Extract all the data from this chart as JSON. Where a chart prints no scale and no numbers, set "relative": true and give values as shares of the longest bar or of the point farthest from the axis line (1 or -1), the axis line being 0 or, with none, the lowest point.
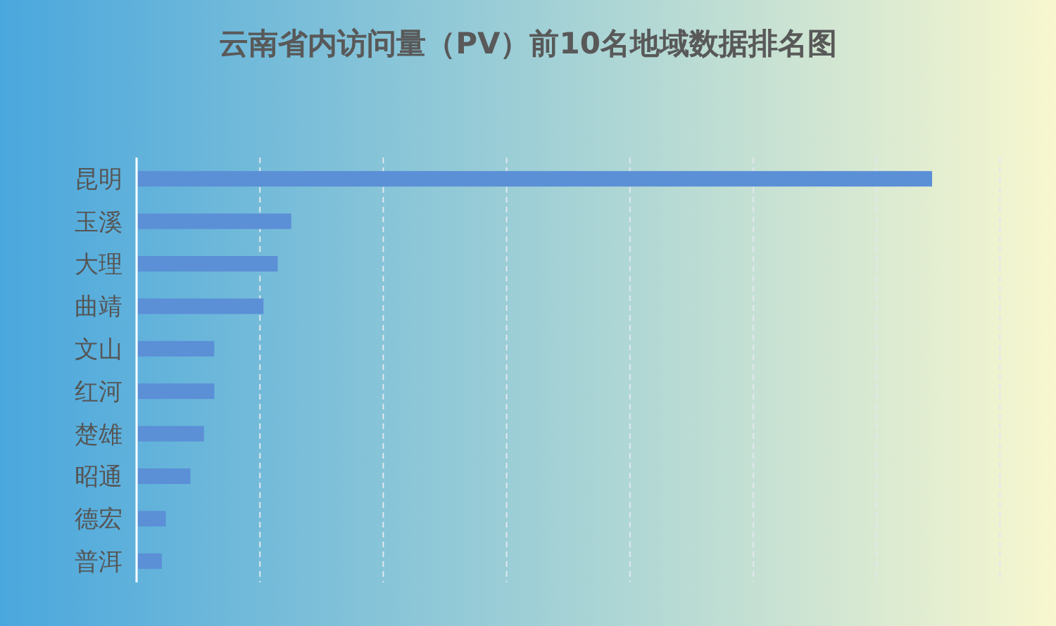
{
  "chart_data": {
    "type": "bar",
    "orientation": "horizontal",
    "relative": true,
    "title": "云南省内访问量（PV）前10名地域数据排名图",
    "categories": [
      "昆明",
      "玉溪",
      "大理",
      "曲靖",
      "文山",
      "红河",
      "楚雄",
      "昭通",
      "德宏",
      "普洱"
    ],
    "values": [
      1,
      0.193,
      0.176,
      0.158,
      0.096,
      0.096,
      0.083,
      0.066,
      0.035,
      0.03
    ],
    "color": "#5b8fd6",
    "grid": "x"
  }
}
